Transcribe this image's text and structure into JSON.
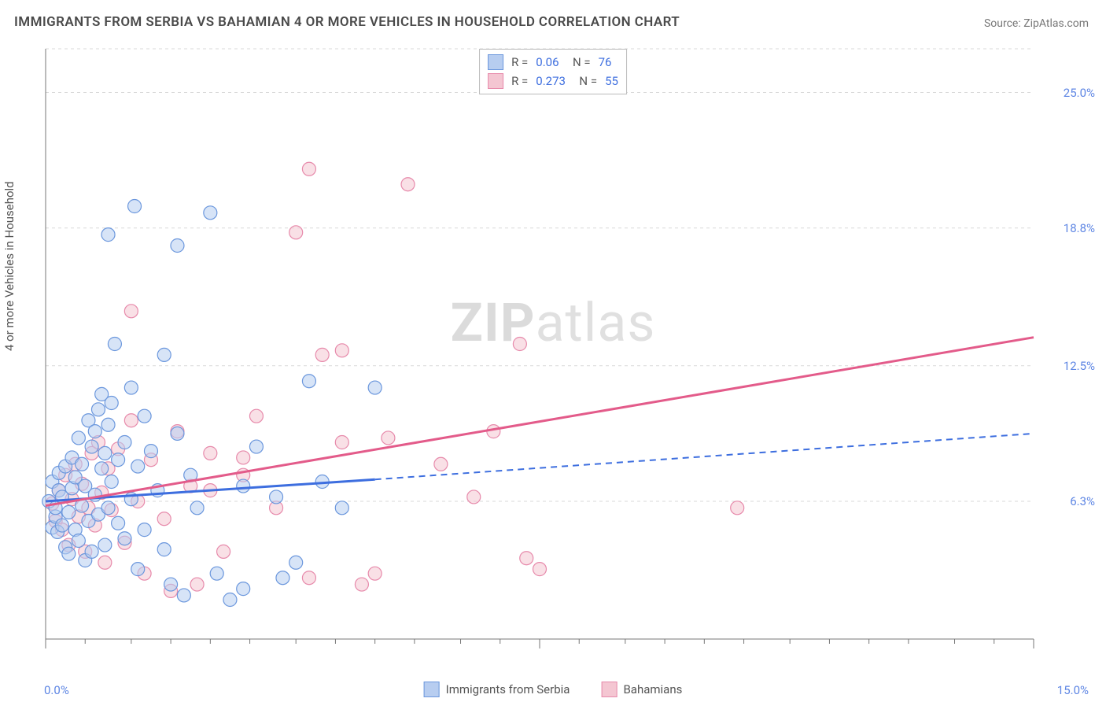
{
  "title": "IMMIGRANTS FROM SERBIA VS BAHAMIAN 4 OR MORE VEHICLES IN HOUSEHOLD CORRELATION CHART",
  "source": "Source: ZipAtlas.com",
  "watermark_bold": "ZIP",
  "watermark_rest": "atlas",
  "chart": {
    "type": "scatter",
    "ylabel": "4 or more Vehicles in Household",
    "xlim": [
      0.0,
      15.0
    ],
    "ylim": [
      0.0,
      27.0
    ],
    "x_min_label": "0.0%",
    "x_max_label": "15.0%",
    "y_ticks": [
      {
        "value": 6.3,
        "label": "6.3%"
      },
      {
        "value": 12.5,
        "label": "12.5%"
      },
      {
        "value": 18.8,
        "label": "18.8%"
      },
      {
        "value": 25.0,
        "label": "25.0%"
      }
    ],
    "x_minor_ticks": [
      0.6,
      1.3,
      1.9,
      2.5,
      3.1,
      3.8,
      4.4,
      5.0,
      5.6,
      6.3,
      6.9,
      7.5,
      8.1,
      8.8,
      9.4,
      10.0,
      10.6,
      11.3,
      11.9,
      12.5,
      13.1,
      13.8,
      14.4
    ],
    "background_color": "#ffffff",
    "grid_color": "#d9d9d9",
    "axis_color": "#777777",
    "accent_blue": "#5e86e4",
    "marker_radius": 8.5,
    "marker_opacity": 0.55,
    "series": [
      {
        "name": "Immigrants from Serbia",
        "fill": "#b7cdf0",
        "stroke": "#6b97dd",
        "line_color": "#3d6edf",
        "r": 0.06,
        "n": 76,
        "trend": {
          "x1": 0.0,
          "y1": 6.3,
          "x2_solid": 5.0,
          "y2_solid": 7.3,
          "x2_dash": 15.0,
          "y2_dash": 9.4
        },
        "points": [
          [
            0.05,
            6.3
          ],
          [
            0.1,
            5.1
          ],
          [
            0.1,
            7.2
          ],
          [
            0.15,
            5.6
          ],
          [
            0.15,
            6.0
          ],
          [
            0.18,
            4.9
          ],
          [
            0.2,
            6.8
          ],
          [
            0.2,
            7.6
          ],
          [
            0.25,
            5.2
          ],
          [
            0.25,
            6.5
          ],
          [
            0.3,
            4.2
          ],
          [
            0.3,
            7.9
          ],
          [
            0.35,
            5.8
          ],
          [
            0.35,
            3.9
          ],
          [
            0.4,
            6.9
          ],
          [
            0.4,
            8.3
          ],
          [
            0.45,
            5.0
          ],
          [
            0.45,
            7.4
          ],
          [
            0.5,
            4.5
          ],
          [
            0.5,
            9.2
          ],
          [
            0.55,
            6.1
          ],
          [
            0.55,
            8.0
          ],
          [
            0.6,
            3.6
          ],
          [
            0.6,
            7.0
          ],
          [
            0.65,
            10.0
          ],
          [
            0.65,
            5.4
          ],
          [
            0.7,
            8.8
          ],
          [
            0.7,
            4.0
          ],
          [
            0.75,
            6.6
          ],
          [
            0.75,
            9.5
          ],
          [
            0.8,
            10.5
          ],
          [
            0.8,
            5.7
          ],
          [
            0.85,
            7.8
          ],
          [
            0.85,
            11.2
          ],
          [
            0.9,
            4.3
          ],
          [
            0.9,
            8.5
          ],
          [
            0.95,
            6.0
          ],
          [
            0.95,
            9.8
          ],
          [
            1.0,
            7.2
          ],
          [
            1.0,
            10.8
          ],
          [
            1.1,
            5.3
          ],
          [
            1.1,
            8.2
          ],
          [
            1.2,
            9.0
          ],
          [
            1.2,
            4.6
          ],
          [
            1.3,
            11.5
          ],
          [
            1.3,
            6.4
          ],
          [
            1.4,
            3.2
          ],
          [
            1.4,
            7.9
          ],
          [
            1.5,
            10.2
          ],
          [
            1.5,
            5.0
          ],
          [
            1.6,
            8.6
          ],
          [
            1.7,
            6.8
          ],
          [
            1.8,
            13.0
          ],
          [
            1.8,
            4.1
          ],
          [
            1.9,
            2.5
          ],
          [
            2.0,
            9.4
          ],
          [
            2.0,
            18.0
          ],
          [
            2.1,
            2.0
          ],
          [
            2.2,
            7.5
          ],
          [
            2.3,
            6.0
          ],
          [
            2.5,
            19.5
          ],
          [
            2.6,
            3.0
          ],
          [
            2.8,
            1.8
          ],
          [
            3.0,
            7.0
          ],
          [
            3.0,
            2.3
          ],
          [
            3.2,
            8.8
          ],
          [
            3.5,
            6.5
          ],
          [
            3.6,
            2.8
          ],
          [
            3.8,
            3.5
          ],
          [
            4.0,
            11.8
          ],
          [
            4.2,
            7.2
          ],
          [
            4.5,
            6.0
          ],
          [
            5.0,
            11.5
          ],
          [
            1.05,
            13.5
          ],
          [
            0.95,
            18.5
          ],
          [
            1.35,
            19.8
          ]
        ]
      },
      {
        "name": "Bahamians",
        "fill": "#f4c6d2",
        "stroke": "#e78aab",
        "line_color": "#e35b8a",
        "r": 0.273,
        "n": 55,
        "trend": {
          "x1": 0.0,
          "y1": 6.1,
          "x2_solid": 15.0,
          "y2_solid": 13.8,
          "x2_dash": 15.0,
          "y2_dash": 13.8
        },
        "points": [
          [
            0.1,
            6.2
          ],
          [
            0.15,
            5.4
          ],
          [
            0.2,
            6.8
          ],
          [
            0.25,
            5.0
          ],
          [
            0.3,
            7.5
          ],
          [
            0.35,
            4.3
          ],
          [
            0.4,
            6.4
          ],
          [
            0.45,
            8.0
          ],
          [
            0.5,
            5.6
          ],
          [
            0.55,
            7.1
          ],
          [
            0.6,
            4.0
          ],
          [
            0.65,
            6.0
          ],
          [
            0.7,
            8.5
          ],
          [
            0.75,
            5.2
          ],
          [
            0.8,
            9.0
          ],
          [
            0.85,
            6.7
          ],
          [
            0.9,
            3.5
          ],
          [
            0.95,
            7.8
          ],
          [
            1.0,
            5.9
          ],
          [
            1.1,
            8.7
          ],
          [
            1.2,
            4.4
          ],
          [
            1.3,
            10.0
          ],
          [
            1.3,
            15.0
          ],
          [
            1.4,
            6.3
          ],
          [
            1.5,
            3.0
          ],
          [
            1.6,
            8.2
          ],
          [
            1.8,
            5.5
          ],
          [
            1.9,
            2.2
          ],
          [
            2.0,
            9.5
          ],
          [
            2.2,
            7.0
          ],
          [
            2.3,
            2.5
          ],
          [
            2.5,
            6.8
          ],
          [
            2.5,
            8.5
          ],
          [
            2.7,
            4.0
          ],
          [
            3.0,
            7.5
          ],
          [
            3.0,
            8.3
          ],
          [
            3.2,
            10.2
          ],
          [
            3.5,
            6.0
          ],
          [
            3.8,
            18.6
          ],
          [
            4.0,
            2.8
          ],
          [
            4.0,
            21.5
          ],
          [
            4.2,
            13.0
          ],
          [
            4.5,
            9.0
          ],
          [
            4.8,
            2.5
          ],
          [
            5.0,
            3.0
          ],
          [
            5.2,
            9.2
          ],
          [
            5.5,
            20.8
          ],
          [
            6.0,
            8.0
          ],
          [
            6.5,
            6.5
          ],
          [
            6.8,
            9.5
          ],
          [
            7.2,
            13.5
          ],
          [
            7.3,
            3.7
          ],
          [
            7.5,
            3.2
          ],
          [
            10.5,
            6.0
          ],
          [
            4.5,
            13.2
          ]
        ]
      }
    ]
  },
  "legend_bottom": [
    {
      "label": "Immigrants from Serbia",
      "fill": "#b7cdf0",
      "stroke": "#6b97dd"
    },
    {
      "label": "Bahamians",
      "fill": "#f4c6d2",
      "stroke": "#e78aab"
    }
  ]
}
